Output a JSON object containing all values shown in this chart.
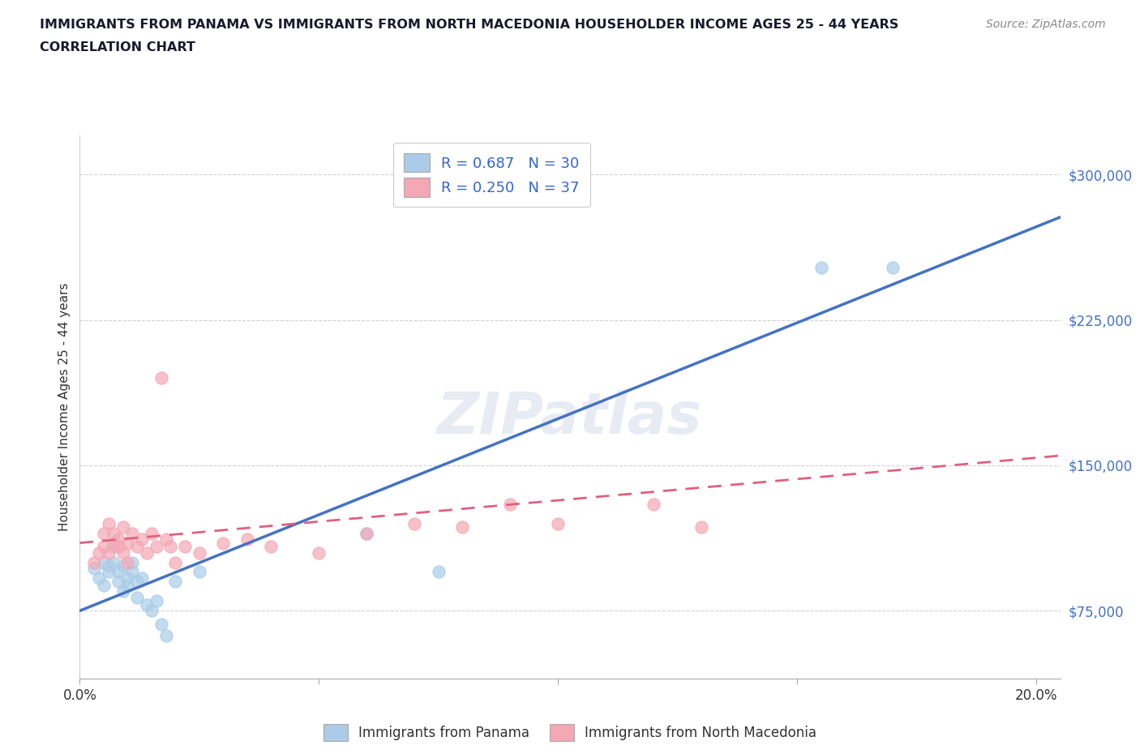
{
  "title_line1": "IMMIGRANTS FROM PANAMA VS IMMIGRANTS FROM NORTH MACEDONIA HOUSEHOLDER INCOME AGES 25 - 44 YEARS",
  "title_line2": "CORRELATION CHART",
  "source_text": "Source: ZipAtlas.com",
  "ylabel": "Householder Income Ages 25 - 44 years",
  "xlim": [
    0.0,
    0.205
  ],
  "ylim": [
    40000,
    320000
  ],
  "yticks": [
    75000,
    150000,
    225000,
    300000
  ],
  "ytick_labels": [
    "$75,000",
    "$150,000",
    "$225,000",
    "$300,000"
  ],
  "xticks": [
    0.0,
    0.05,
    0.1,
    0.15,
    0.2
  ],
  "xtick_labels": [
    "0.0%",
    "",
    "",
    "",
    "20.0%"
  ],
  "r_panama": 0.687,
  "n_panama": 30,
  "r_macedonia": 0.25,
  "n_macedonia": 37,
  "legend_label_panama": "Immigrants from Panama",
  "legend_label_macedonia": "Immigrants from North Macedonia",
  "color_panama": "#aacce8",
  "color_macedonia": "#f4a7b4",
  "line_color_panama": "#4472c4",
  "line_color_macedonia": "#e06080",
  "watermark": "ZIPatlas",
  "background_color": "#ffffff",
  "panama_x": [
    0.003,
    0.004,
    0.005,
    0.005,
    0.006,
    0.006,
    0.007,
    0.007,
    0.008,
    0.008,
    0.009,
    0.009,
    0.01,
    0.01,
    0.011,
    0.011,
    0.012,
    0.012,
    0.013,
    0.014,
    0.015,
    0.016,
    0.017,
    0.018,
    0.02,
    0.025,
    0.06,
    0.075,
    0.155,
    0.17
  ],
  "panama_y": [
    97000,
    92000,
    100000,
    88000,
    98000,
    95000,
    100000,
    108000,
    95000,
    90000,
    98000,
    85000,
    92000,
    88000,
    100000,
    95000,
    90000,
    82000,
    92000,
    78000,
    75000,
    80000,
    68000,
    62000,
    90000,
    95000,
    115000,
    95000,
    252000,
    252000
  ],
  "macedonia_x": [
    0.003,
    0.004,
    0.005,
    0.005,
    0.006,
    0.006,
    0.007,
    0.007,
    0.008,
    0.008,
    0.009,
    0.009,
    0.01,
    0.01,
    0.011,
    0.012,
    0.013,
    0.014,
    0.015,
    0.016,
    0.017,
    0.018,
    0.019,
    0.02,
    0.022,
    0.025,
    0.03,
    0.035,
    0.04,
    0.05,
    0.06,
    0.07,
    0.08,
    0.09,
    0.1,
    0.12,
    0.13
  ],
  "macedonia_y": [
    100000,
    105000,
    115000,
    108000,
    120000,
    105000,
    115000,
    110000,
    112000,
    108000,
    118000,
    105000,
    110000,
    100000,
    115000,
    108000,
    112000,
    105000,
    115000,
    108000,
    195000,
    112000,
    108000,
    100000,
    108000,
    105000,
    110000,
    112000,
    108000,
    105000,
    115000,
    120000,
    118000,
    130000,
    120000,
    130000,
    118000
  ],
  "panama_line_x0": 0.0,
  "panama_line_y0": 75000,
  "panama_line_x1": 0.205,
  "panama_line_y1": 278000,
  "macedonia_line_x0": 0.0,
  "macedonia_line_y0": 110000,
  "macedonia_line_x1": 0.205,
  "macedonia_line_y1": 155000
}
